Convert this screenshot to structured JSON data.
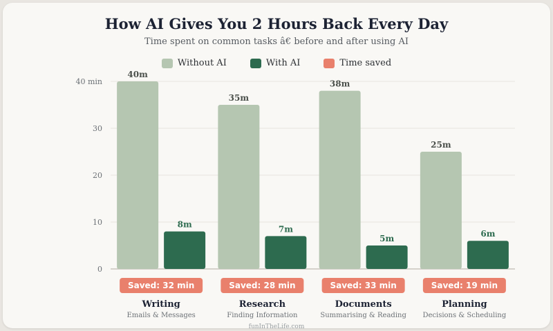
{
  "chart_data": {
    "type": "bar",
    "title": "How AI Gives You 2 Hours Back Every Day",
    "subtitle": "Time spent on common tasks â€\u0019 before and after using AI",
    "y_unit_label": "40 min",
    "yticks": [
      0,
      10,
      20,
      30,
      40
    ],
    "ylim": [
      0,
      40
    ],
    "grid": true,
    "legend_position": "top-center",
    "categories": [
      "Writing",
      "Research",
      "Documents",
      "Planning"
    ],
    "category_subtitles": [
      "Emails & Messages",
      "Finding Information",
      "Summarising & Reading",
      "Decisions & Scheduling"
    ],
    "series": [
      {
        "name": "Without AI",
        "values": [
          40,
          35,
          38,
          25
        ],
        "labels": [
          "40m",
          "35m",
          "38m",
          "25m"
        ],
        "color": "#b5c6b1"
      },
      {
        "name": "With AI",
        "values": [
          8,
          7,
          5,
          6
        ],
        "labels": [
          "8m",
          "7m",
          "5m",
          "6m"
        ],
        "color": "#2d6b4f"
      }
    ],
    "time_saved": {
      "name": "Time saved",
      "color": "#e9806c",
      "values": [
        32,
        28,
        33,
        19
      ],
      "labels": [
        "Saved: 32 min",
        "Saved: 28 min",
        "Saved: 33 min",
        "Saved: 19 min"
      ]
    }
  },
  "footer": {
    "text": "funInTheLife.com"
  },
  "colors": {
    "background": "#f9f8f5",
    "title": "#1c2233",
    "grid": "#e6e3de",
    "axis": "#c9c4bd"
  }
}
